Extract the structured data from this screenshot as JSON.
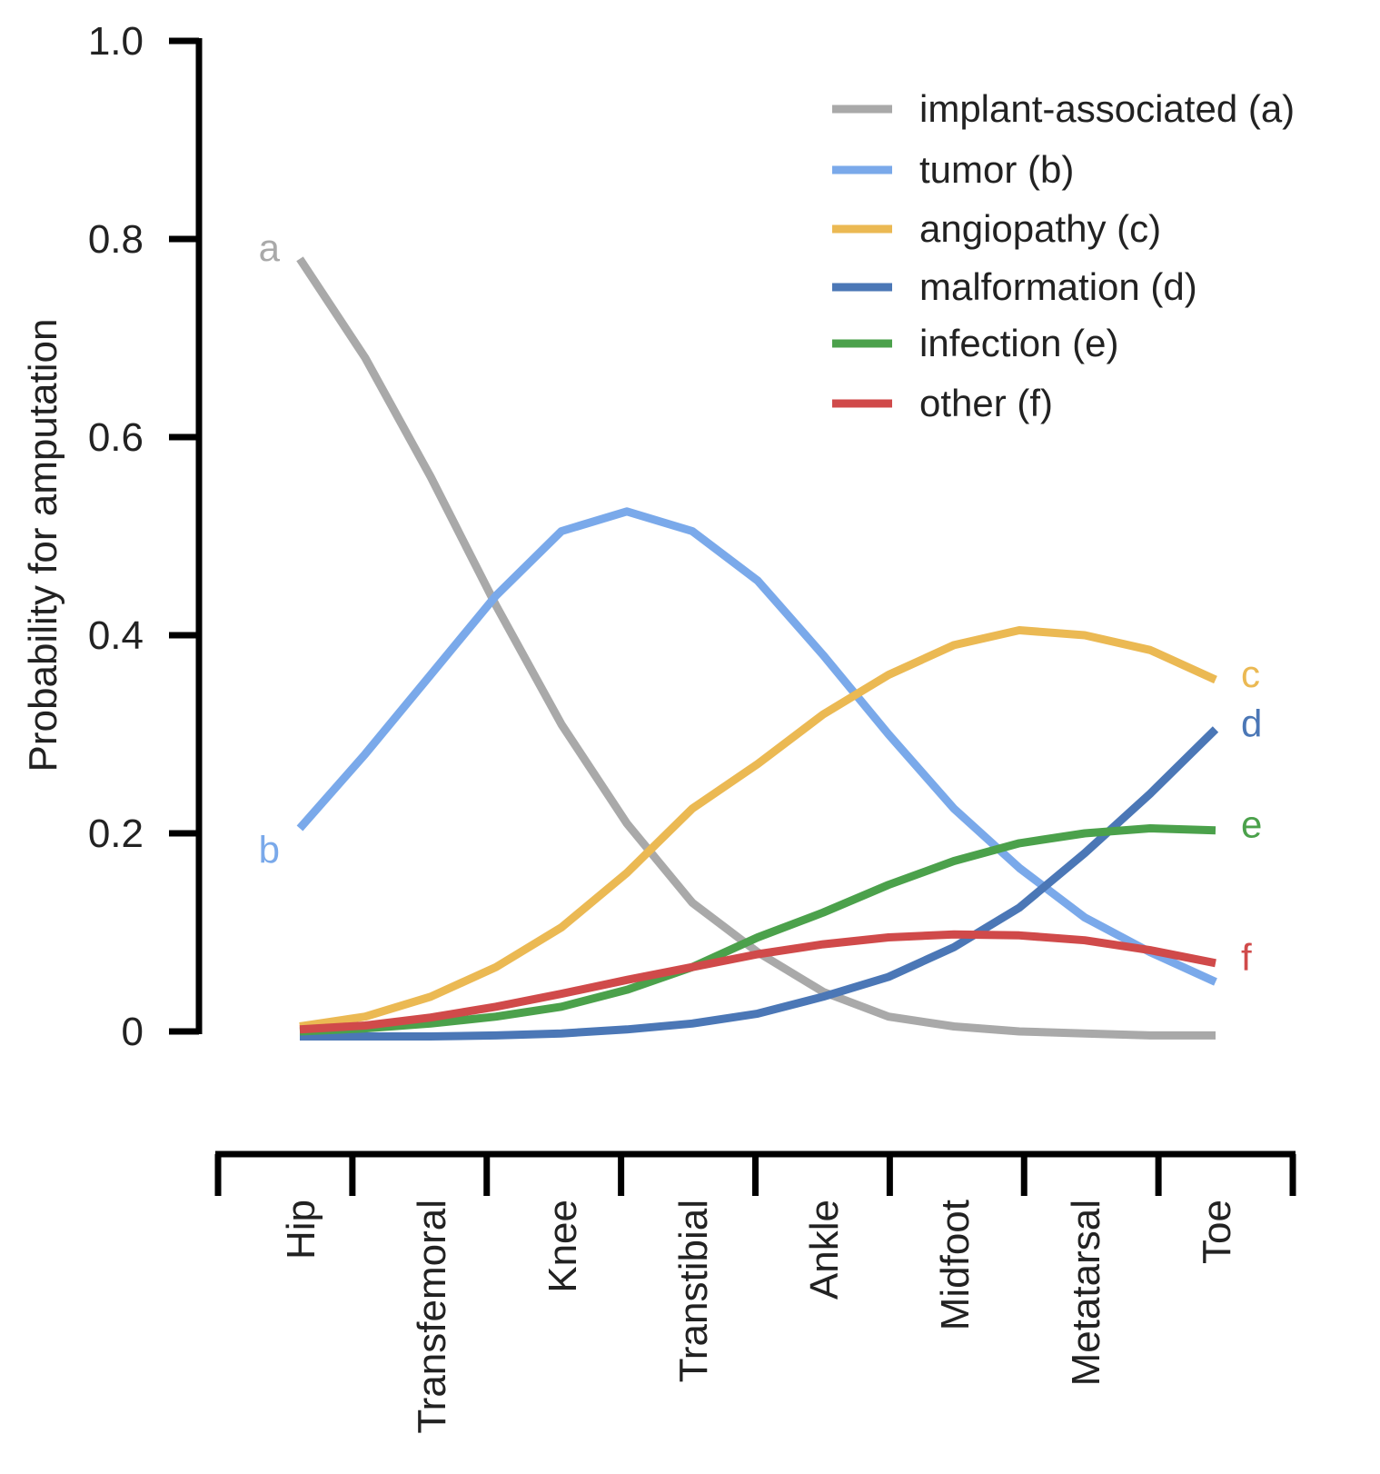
{
  "chart_data": {
    "type": "line",
    "title": "",
    "xlabel": "",
    "ylabel": "Probability for amputation",
    "ylim": [
      0,
      1.0
    ],
    "yticks": [
      {
        "value": 0,
        "label": "0"
      },
      {
        "value": 0.2,
        "label": "0.2"
      },
      {
        "value": 0.4,
        "label": "0.4"
      },
      {
        "value": 0.6,
        "label": "0.6"
      },
      {
        "value": 0.8,
        "label": "0.8"
      },
      {
        "value": 1.0,
        "label": "1.0"
      }
    ],
    "categories": [
      "Hip",
      "Transfemoral",
      "Knee",
      "Transtibial",
      "Ankle",
      "Midfoot",
      "Metatarsal",
      "Toe"
    ],
    "x_positions": [
      0,
      1,
      2,
      3,
      4,
      5,
      6,
      7
    ],
    "x": [
      0,
      0.5,
      1,
      1.5,
      2,
      2.5,
      3,
      3.5,
      4,
      4.5,
      5,
      5.5,
      6,
      6.5,
      7
    ],
    "legend_position": "top-right",
    "series": [
      {
        "name": "implant-associated (a)",
        "end_label": "a",
        "label_side": "start",
        "color": "#a9a9a9",
        "values": [
          0.78,
          0.68,
          0.56,
          0.43,
          0.31,
          0.21,
          0.13,
          0.08,
          0.04,
          0.015,
          0.005,
          0.0,
          -0.002,
          -0.004,
          -0.004
        ]
      },
      {
        "name": "tumor (b)",
        "end_label": "b",
        "label_side": "start",
        "color": "#7aa9ea",
        "values": [
          0.205,
          0.28,
          0.36,
          0.44,
          0.505,
          0.525,
          0.505,
          0.455,
          0.38,
          0.3,
          0.225,
          0.165,
          0.115,
          0.08,
          0.05
        ]
      },
      {
        "name": "angiopathy (c)",
        "end_label": "c",
        "label_side": "end",
        "color": "#ebb953",
        "values": [
          0.005,
          0.015,
          0.035,
          0.065,
          0.105,
          0.16,
          0.225,
          0.27,
          0.32,
          0.36,
          0.39,
          0.405,
          0.4,
          0.385,
          0.355
        ]
      },
      {
        "name": "malformation (d)",
        "end_label": "d",
        "label_side": "end",
        "color": "#4b77b6",
        "values": [
          -0.005,
          -0.005,
          -0.005,
          -0.004,
          -0.002,
          0.002,
          0.008,
          0.018,
          0.035,
          0.055,
          0.085,
          0.125,
          0.18,
          0.24,
          0.305
        ]
      },
      {
        "name": "infection (e)",
        "end_label": "e",
        "label_side": "end",
        "color": "#4ba14b",
        "values": [
          0.0,
          0.003,
          0.008,
          0.015,
          0.025,
          0.042,
          0.065,
          0.095,
          0.12,
          0.148,
          0.172,
          0.19,
          0.2,
          0.205,
          0.203
        ]
      },
      {
        "name": "other (f)",
        "end_label": "f",
        "label_side": "end",
        "color": "#d04a4a",
        "values": [
          0.002,
          0.006,
          0.014,
          0.025,
          0.038,
          0.052,
          0.065,
          0.078,
          0.088,
          0.095,
          0.098,
          0.097,
          0.092,
          0.082,
          0.069
        ]
      }
    ]
  }
}
